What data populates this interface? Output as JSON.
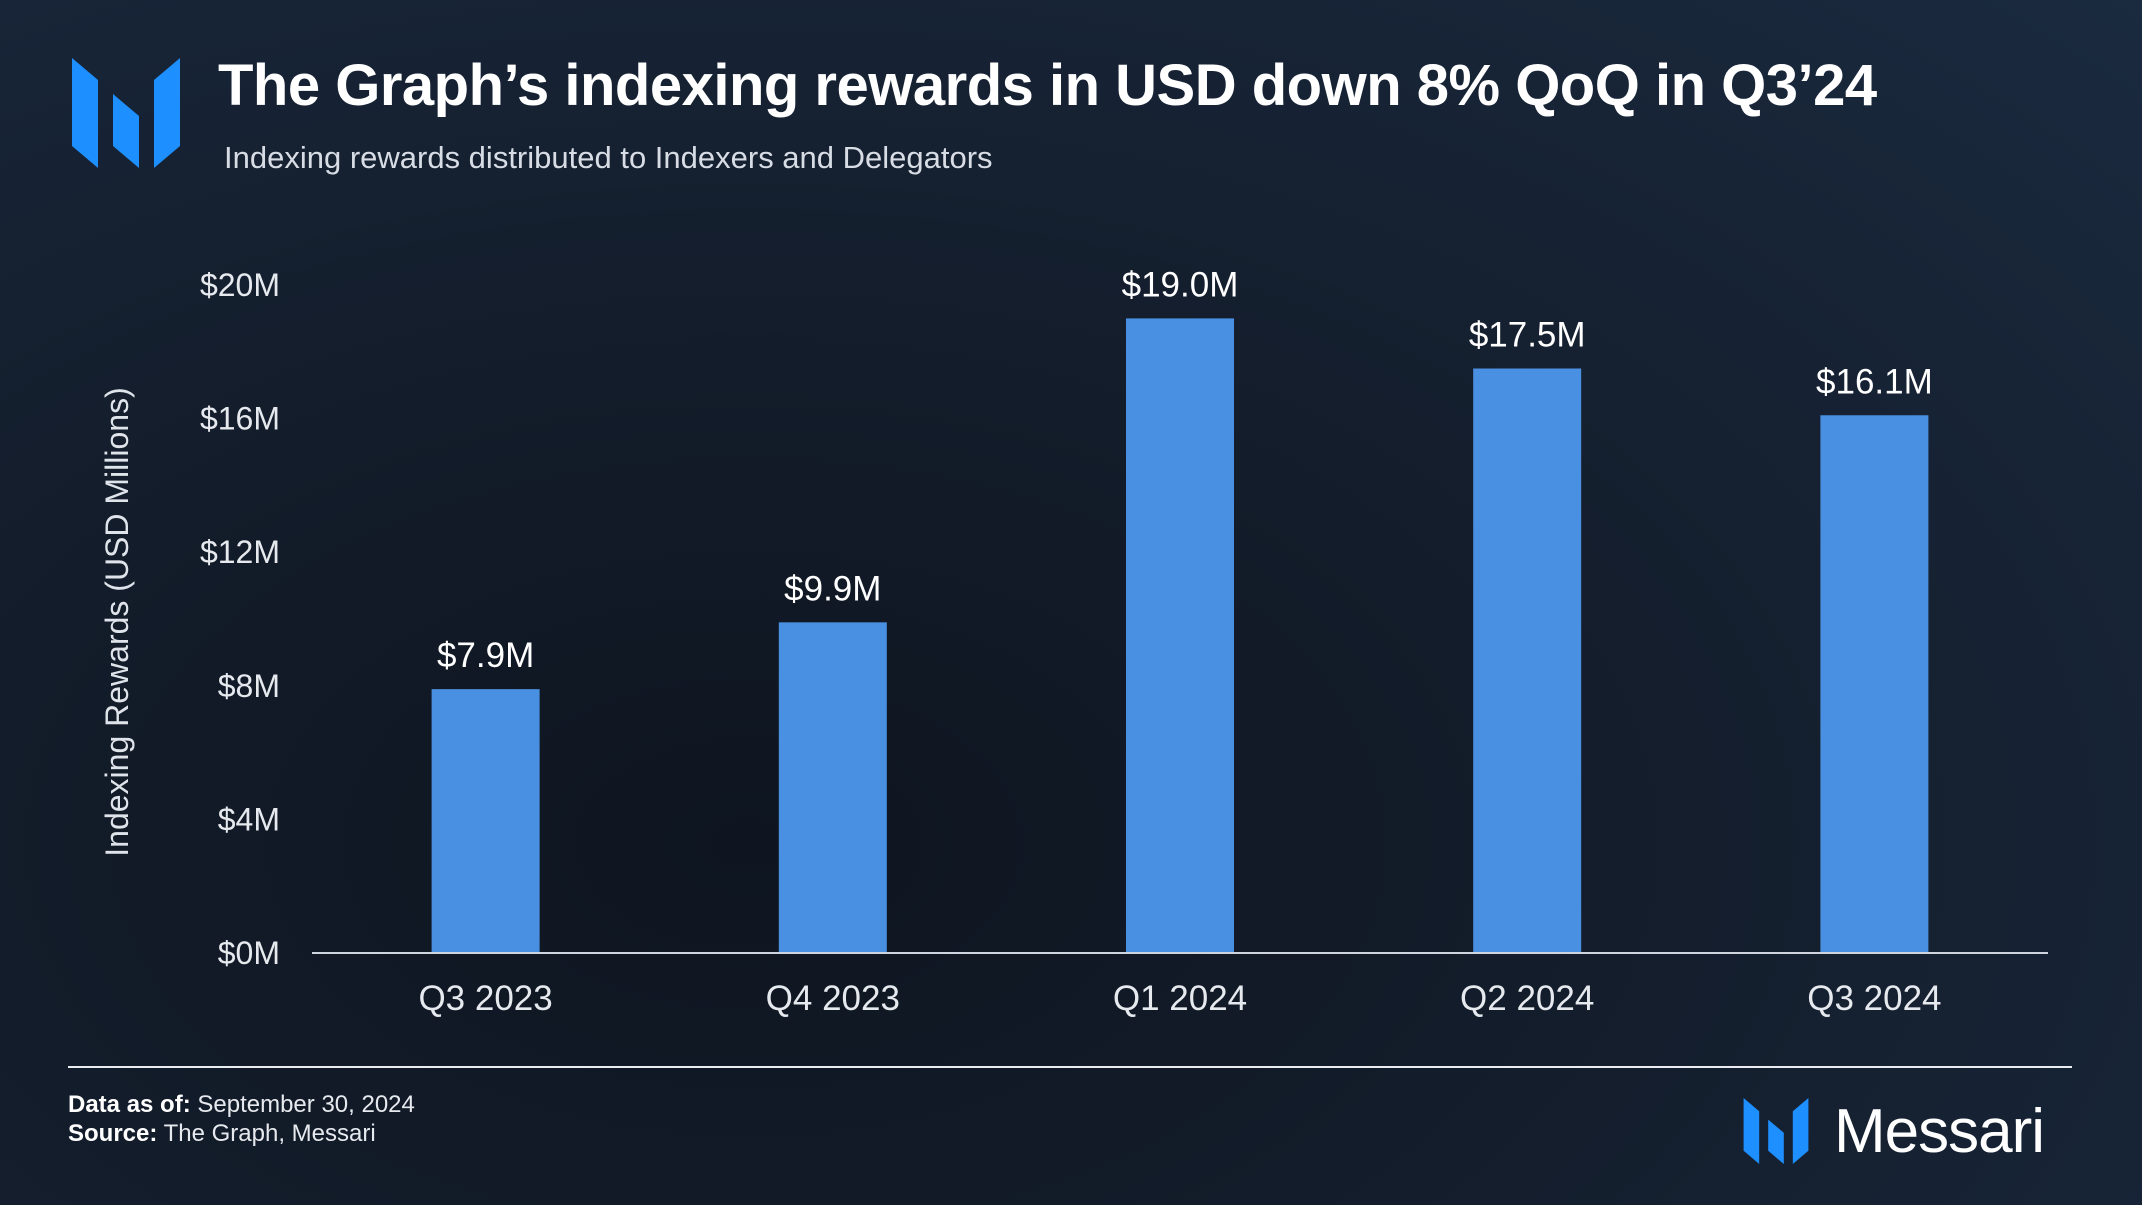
{
  "header": {
    "title": "The Graph’s indexing rewards in USD down 8% QoQ in Q3’24",
    "subtitle": "Indexing rewards distributed to Indexers and Delegators"
  },
  "chart_data": {
    "type": "bar",
    "categories": [
      "Q3 2023",
      "Q4 2023",
      "Q1 2024",
      "Q2 2024",
      "Q3 2024"
    ],
    "values": [
      7.9,
      9.9,
      19.0,
      17.5,
      16.1
    ],
    "data_labels": [
      "$7.9M",
      "$9.9M",
      "$19.0M",
      "$17.5M",
      "$16.1M"
    ],
    "ylabel": "Indexing Rewards (USD Millions)",
    "ylim": [
      0,
      20
    ],
    "yticks": [
      0,
      4,
      8,
      12,
      16,
      20
    ],
    "ytick_labels": [
      "$0M",
      "$4M",
      "$8M",
      "$12M",
      "$16M",
      "$20M"
    ],
    "grid": false,
    "bar_color": "#4a90e2"
  },
  "footer": {
    "data_as_of_label": "Data as of:",
    "data_as_of_value": " September 30, 2024",
    "source_label": "Source:",
    "source_value": " The Graph, Messari"
  },
  "brand": {
    "name": "Messari",
    "icon": "messari-logo-icon",
    "accent": "#1e90ff"
  }
}
